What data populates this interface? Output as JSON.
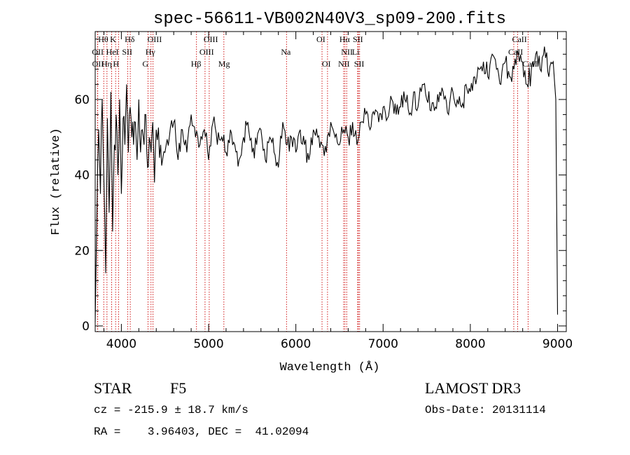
{
  "chart_data": {
    "type": "line",
    "title": "spec-56611-VB002N40V3_sp09-200.fits",
    "xlabel": "Wavelength (Å)",
    "ylabel": "Flux (relative)",
    "xlim": [
      3700,
      9100
    ],
    "ylim": [
      -1.5,
      78
    ],
    "x_ticks": [
      4000,
      5000,
      6000,
      7000,
      8000,
      9000
    ],
    "y_ticks": [
      0,
      20,
      40,
      60
    ],
    "series": [
      {
        "name": "spectrum",
        "x": [
          3700,
          3720,
          3740,
          3760,
          3780,
          3800,
          3820,
          3840,
          3860,
          3880,
          3900,
          3920,
          3940,
          3960,
          3980,
          4000,
          4020,
          4040,
          4060,
          4080,
          4100,
          4120,
          4140,
          4160,
          4180,
          4200,
          4220,
          4240,
          4260,
          4280,
          4300,
          4320,
          4340,
          4360,
          4380,
          4400,
          4450,
          4500,
          4550,
          4600,
          4650,
          4700,
          4750,
          4800,
          4850,
          4900,
          4950,
          5000,
          5050,
          5100,
          5150,
          5200,
          5250,
          5300,
          5350,
          5400,
          5450,
          5500,
          5550,
          5600,
          5650,
          5700,
          5750,
          5800,
          5850,
          5900,
          5950,
          6000,
          6050,
          6100,
          6150,
          6200,
          6250,
          6300,
          6350,
          6400,
          6450,
          6500,
          6550,
          6600,
          6650,
          6700,
          6750,
          6800,
          6850,
          6900,
          6950,
          7000,
          7050,
          7100,
          7150,
          7200,
          7250,
          7300,
          7350,
          7400,
          7450,
          7500,
          7550,
          7600,
          7650,
          7700,
          7750,
          7800,
          7850,
          7900,
          7950,
          8000,
          8050,
          8100,
          8150,
          8200,
          8250,
          8300,
          8350,
          8400,
          8450,
          8500,
          8550,
          8600,
          8650,
          8700,
          8750,
          8800,
          8850,
          8900,
          8950,
          8980,
          9000
        ],
        "y": [
          1,
          30,
          52,
          35,
          60,
          38,
          14,
          55,
          30,
          62,
          25,
          48,
          56,
          40,
          60,
          35,
          55,
          48,
          64,
          46,
          58,
          50,
          48,
          54,
          44,
          60,
          46,
          52,
          48,
          56,
          42,
          50,
          46,
          54,
          38,
          52,
          48,
          46,
          50,
          54,
          44,
          52,
          46,
          56,
          50,
          48,
          52,
          44,
          54,
          48,
          50,
          46,
          52,
          48,
          44,
          50,
          54,
          46,
          48,
          52,
          44,
          50,
          46,
          42,
          54,
          48,
          50,
          46,
          52,
          48,
          44,
          52,
          50,
          48,
          46,
          54,
          50,
          48,
          52,
          50,
          54,
          48,
          54,
          56,
          52,
          56,
          54,
          58,
          55,
          60,
          56,
          58,
          60,
          56,
          62,
          58,
          64,
          60,
          57,
          58,
          62,
          60,
          56,
          62,
          60,
          58,
          64,
          62,
          66,
          68,
          70,
          66,
          72,
          68,
          64,
          70,
          66,
          68,
          72,
          70,
          64,
          68,
          72,
          68,
          74,
          66,
          70,
          60,
          3
        ]
      }
    ],
    "spectral_lines": [
      {
        "label": "Hθ",
        "x": 3798,
        "row": 1
      },
      {
        "label": "K",
        "x": 3934,
        "row": 1
      },
      {
        "label": "Hδ",
        "x": 4102,
        "row": 1
      },
      {
        "label": "OIII",
        "x": 4363,
        "row": 1
      },
      {
        "label": "OIII",
        "x": 5007,
        "row": 1
      },
      {
        "label": "OI",
        "x": 6300,
        "row": 1
      },
      {
        "label": "Hα",
        "x": 6563,
        "row": 1
      },
      {
        "label": "SII",
        "x": 6717,
        "row": 1
      },
      {
        "label": "CaII",
        "x": 8542,
        "row": 1
      },
      {
        "label": "OII",
        "x": 3727,
        "row": 2
      },
      {
        "label": "HeI",
        "x": 3889,
        "row": 2
      },
      {
        "label": "SII",
        "x": 4072,
        "row": 2
      },
      {
        "label": "Hγ",
        "x": 4340,
        "row": 2
      },
      {
        "label": "OIII",
        "x": 4959,
        "row": 2
      },
      {
        "label": "Na",
        "x": 5893,
        "row": 2
      },
      {
        "label": "NII",
        "x": 6583,
        "row": 2
      },
      {
        "label": "Li",
        "x": 6708,
        "row": 2
      },
      {
        "label": "CaII",
        "x": 8498,
        "row": 2
      },
      {
        "label": "OII",
        "x": 3729,
        "row": 3
      },
      {
        "label": "Hη",
        "x": 3835,
        "row": 3
      },
      {
        "label": "H",
        "x": 3968,
        "row": 3
      },
      {
        "label": "G",
        "x": 4305,
        "row": 3
      },
      {
        "label": "Hβ",
        "x": 4861,
        "row": 3
      },
      {
        "label": "Mg",
        "x": 5175,
        "row": 3
      },
      {
        "label": "OI",
        "x": 6363,
        "row": 3
      },
      {
        "label": "NII",
        "x": 6548,
        "row": 3
      },
      {
        "label": "SII",
        "x": 6731,
        "row": 3
      },
      {
        "label": "CaII",
        "x": 8662,
        "row": 3
      }
    ]
  },
  "info": {
    "object_class": "STAR",
    "subclass": "F5",
    "survey": "LAMOST DR3",
    "redshift_text": "cz = -215.9 ± 18.7 km/s",
    "obs_date_text": "Obs-Date: 20131114",
    "coords_text": "RA =    3.96403, DEC =  41.02094"
  },
  "colors": {
    "spectrum": "#000000",
    "line_markers": "#cc0000",
    "axes": "#000000"
  }
}
